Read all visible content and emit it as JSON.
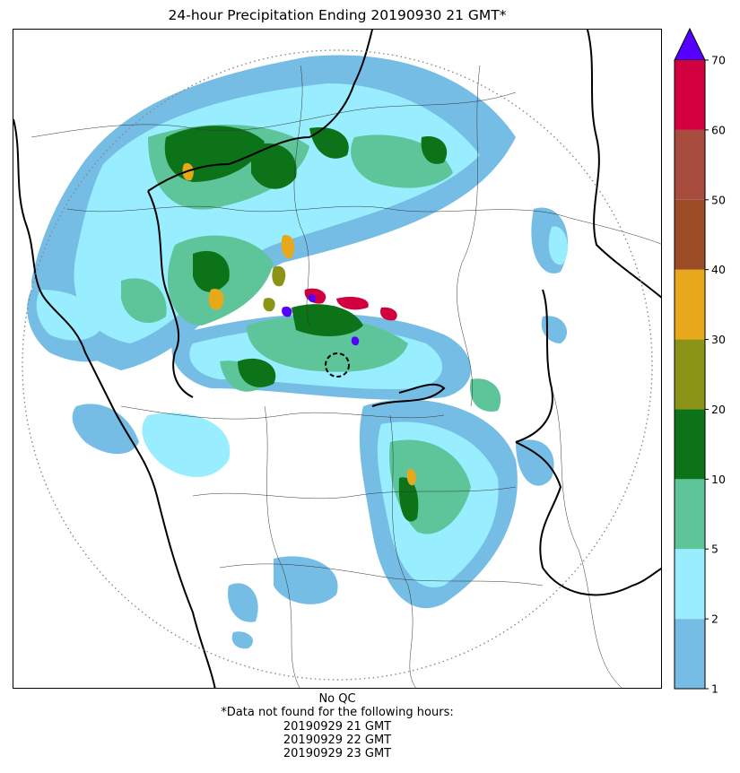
{
  "title": "24-hour Precipitation Ending 20190930 21 GMT*",
  "colorbar": {
    "ticks": [
      "1",
      "2",
      "5",
      "10",
      "20",
      "30",
      "40",
      "50",
      "60",
      "70"
    ],
    "colors": [
      "#76bde6",
      "#98eefe",
      "#5ec499",
      "#0d7318",
      "#8b9417",
      "#e8a81c",
      "#9c4d25",
      "#a84c3f",
      "#d3003f"
    ],
    "overflow_color": "#5300ff"
  },
  "notes": {
    "qc": "No QC",
    "missing_header": "*Data not found for the following hours:",
    "missing_hours": [
      "20190929 21 GMT",
      "20190929 22 GMT",
      "20190929 23 GMT"
    ]
  },
  "map": {
    "color_light_blue": "#76bde6",
    "color_cyan": "#98eefe",
    "color_light_green": "#5ec499",
    "color_dark_green": "#0d7318",
    "color_olive": "#8b9417",
    "color_orange": "#e8a81c",
    "color_red": "#d3003f",
    "color_purple": "#5300ff",
    "range_ring_color": "#888888"
  }
}
